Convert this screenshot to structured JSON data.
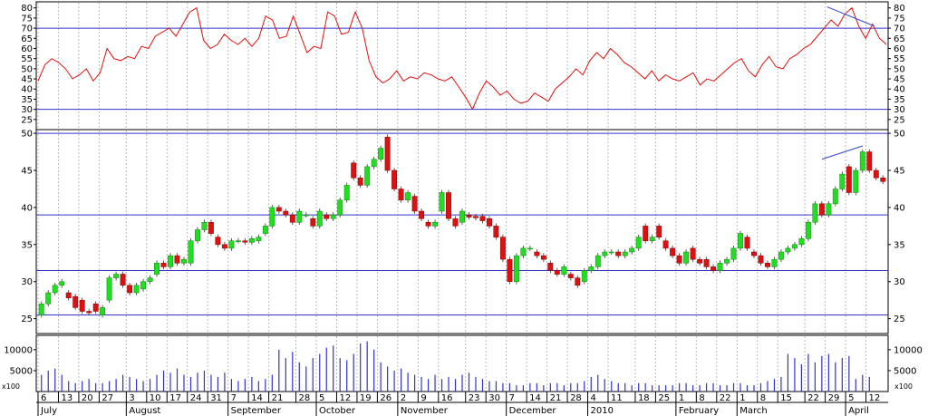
{
  "colors": {
    "rsi_line": "#e01010",
    "up_body": "#22dd22",
    "down_body": "#dd1111",
    "volume_bar": "#3333cc",
    "level_line": "#3333cc",
    "trend_line": "#3344cc",
    "grid": "#bbbbbb",
    "frame": "#000000",
    "background": "#ffffff"
  },
  "chart_data": [
    {
      "type": "line",
      "panel": "rsi",
      "y_ticks": [
        80,
        75,
        70,
        65,
        60,
        55,
        50,
        45,
        40,
        35,
        30,
        25
      ],
      "ylim": [
        20,
        83
      ],
      "grid": true,
      "levels": [
        70,
        30
      ],
      "series": [
        {
          "values": [
            44,
            52,
            55,
            53,
            50,
            45,
            47,
            50,
            44,
            48,
            60,
            55,
            54,
            56,
            55,
            61,
            60,
            66,
            68,
            70,
            66,
            72,
            78,
            80,
            64,
            60,
            62,
            67,
            64,
            62,
            65,
            61,
            65,
            76,
            74,
            65,
            66,
            76,
            67,
            58,
            61,
            60,
            78,
            76,
            67,
            68,
            78,
            70,
            54,
            46,
            43,
            45,
            49,
            44,
            46,
            45,
            48,
            47,
            45,
            44,
            46,
            41,
            36,
            30,
            38,
            44,
            41,
            37,
            39,
            35,
            33,
            34,
            38,
            36,
            34,
            40,
            43,
            46,
            50,
            47,
            54,
            58,
            55,
            60,
            57,
            53,
            51,
            48,
            45,
            49,
            44,
            47,
            45,
            44,
            46,
            48,
            42,
            45,
            44,
            47,
            50,
            53,
            55,
            49,
            46,
            52,
            56,
            51,
            50,
            55,
            57,
            60,
            62,
            66,
            70,
            74,
            71,
            77,
            80,
            71,
            65,
            72,
            65,
            62
          ]
        }
      ],
      "annotations": [
        {
          "type": "trendline",
          "from": [
            20,
            80.5
          ],
          "to": [
            21.2,
            71
          ]
        }
      ]
    },
    {
      "type": "candlestick",
      "panel": "price",
      "y_ticks": [
        50,
        45,
        40,
        35,
        30,
        25
      ],
      "ylim": [
        23,
        50.5
      ],
      "grid": true,
      "levels": [
        50,
        39,
        31.5,
        25.5
      ],
      "x_tick_labels": [
        "6",
        "13",
        "20",
        "27",
        "3",
        "10",
        "17",
        "24",
        "31",
        "7",
        "14",
        "21",
        "28",
        "5",
        "12",
        "19",
        "26",
        "2",
        "9",
        "16",
        "23",
        "30",
        "7",
        "14",
        "21",
        "28",
        "4",
        "11",
        "18",
        "25",
        "1",
        "8",
        "22",
        "1",
        "8",
        "15",
        "22",
        "29",
        "5",
        "12"
      ],
      "month_labels": [
        "July",
        "August",
        "September",
        "October",
        "November",
        "December",
        "2010",
        "February",
        "March",
        "April"
      ],
      "series": [
        {
          "name": "",
          "values": [
            [
              25.5,
              27.0
            ],
            [
              27.0,
              28.5
            ],
            [
              28.5,
              29.5
            ],
            [
              29.5,
              30.0
            ],
            [
              28.5,
              27.8
            ],
            [
              28.0,
              26.5
            ],
            [
              27.5,
              26.0
            ],
            [
              26.0,
              25.8
            ],
            [
              27.0,
              26.0
            ],
            [
              25.5,
              26.5
            ],
            [
              27.5,
              30.5
            ],
            [
              30.5,
              31.0
            ],
            [
              31.0,
              29.5
            ],
            [
              29.5,
              28.5
            ],
            [
              28.5,
              29.5
            ],
            [
              29.0,
              30.0
            ],
            [
              30.0,
              30.5
            ],
            [
              31.0,
              32.5
            ],
            [
              32.5,
              32.0
            ],
            [
              32.0,
              33.5
            ],
            [
              33.5,
              32.5
            ],
            [
              32.5,
              33.0
            ],
            [
              32.5,
              35.5
            ],
            [
              35.5,
              37.0
            ],
            [
              37.0,
              38.0
            ],
            [
              38.0,
              36.5
            ],
            [
              36.0,
              35.0
            ],
            [
              35.0,
              34.5
            ],
            [
              34.5,
              35.5
            ],
            [
              35.5,
              35.5
            ],
            [
              35.5,
              35.3
            ],
            [
              35.3,
              35.8
            ],
            [
              35.5,
              36.0
            ],
            [
              36.5,
              37.5
            ],
            [
              37.5,
              40.0
            ],
            [
              40.0,
              39.5
            ],
            [
              39.5,
              39.0
            ],
            [
              39.0,
              38.0
            ],
            [
              38.0,
              39.5
            ],
            [
              39.0,
              39.0
            ],
            [
              38.5,
              37.5
            ],
            [
              37.5,
              39.5
            ],
            [
              39.0,
              38.5
            ],
            [
              38.5,
              39.0
            ],
            [
              39.0,
              41.0
            ],
            [
              41.0,
              43.0
            ],
            [
              46.0,
              44.0
            ],
            [
              44.0,
              43.0
            ],
            [
              43.0,
              45.5
            ],
            [
              45.5,
              46.5
            ],
            [
              46.5,
              48.0
            ],
            [
              49.5,
              45.0
            ],
            [
              45.0,
              42.5
            ],
            [
              42.5,
              41.0
            ],
            [
              41.0,
              42.0
            ],
            [
              41.5,
              39.5
            ],
            [
              39.5,
              38.5
            ],
            [
              38.0,
              37.5
            ],
            [
              37.5,
              38.0
            ],
            [
              39.5,
              42.0
            ],
            [
              42.0,
              38.5
            ],
            [
              38.5,
              37.5
            ],
            [
              38.0,
              39.5
            ],
            [
              39.0,
              38.7
            ],
            [
              38.8,
              38.6
            ],
            [
              38.8,
              38.2
            ],
            [
              38.5,
              37.5
            ],
            [
              37.5,
              36.0
            ],
            [
              36.0,
              33.0
            ],
            [
              33.0,
              30.0
            ],
            [
              30.0,
              33.5
            ],
            [
              33.5,
              34.5
            ],
            [
              34.5,
              34.5
            ],
            [
              34.0,
              33.5
            ],
            [
              33.5,
              33.0
            ],
            [
              32.5,
              31.5
            ],
            [
              31.5,
              31.0
            ],
            [
              31.0,
              32.0
            ],
            [
              31.0,
              30.5
            ],
            [
              30.5,
              29.5
            ],
            [
              30.0,
              31.5
            ],
            [
              31.5,
              32.0
            ],
            [
              32.0,
              33.5
            ],
            [
              33.5,
              34.0
            ],
            [
              34.0,
              34.0
            ],
            [
              34.0,
              33.5
            ],
            [
              33.5,
              34.0
            ],
            [
              34.0,
              34.5
            ],
            [
              34.5,
              36.0
            ],
            [
              37.5,
              35.5
            ],
            [
              35.5,
              36.0
            ],
            [
              37.5,
              36.0
            ],
            [
              35.5,
              34.5
            ],
            [
              34.5,
              33.5
            ],
            [
              33.5,
              32.5
            ],
            [
              32.5,
              34.0
            ],
            [
              34.5,
              33.0
            ],
            [
              33.0,
              32.5
            ],
            [
              33.0,
              32.0
            ],
            [
              32.0,
              31.5
            ],
            [
              31.5,
              32.5
            ],
            [
              32.5,
              33.0
            ],
            [
              33.0,
              34.5
            ],
            [
              34.5,
              36.5
            ],
            [
              36.0,
              34.5
            ],
            [
              34.0,
              33.5
            ],
            [
              33.5,
              32.5
            ],
            [
              32.5,
              32.0
            ],
            [
              32.0,
              33.0
            ],
            [
              33.0,
              34.0
            ],
            [
              34.0,
              34.5
            ],
            [
              34.5,
              35.0
            ],
            [
              35.0,
              35.8
            ],
            [
              35.8,
              38.0
            ],
            [
              38.0,
              40.5
            ],
            [
              40.5,
              39.0
            ],
            [
              39.0,
              40.5
            ],
            [
              40.5,
              42.5
            ],
            [
              42.5,
              44.5
            ],
            [
              45.5,
              42.0
            ],
            [
              42.0,
              45.0
            ],
            [
              45.0,
              47.5
            ],
            [
              47.5,
              45.0
            ],
            [
              45.0,
              44.0
            ],
            [
              44.0,
              43.5
            ]
          ]
        }
      ],
      "annotations": [
        {
          "type": "trendline",
          "from": [
            115,
            46.5
          ],
          "to": [
            121,
            48.3
          ]
        }
      ]
    },
    {
      "type": "bar",
      "panel": "volume",
      "ylabel": "x100",
      "y_ticks": [
        10000,
        5000
      ],
      "ylim": [
        0,
        13000
      ],
      "values": [
        4000,
        5000,
        5500,
        4000,
        2500,
        2000,
        2500,
        3000,
        2000,
        2000,
        2500,
        3000,
        4000,
        3500,
        3000,
        2500,
        3000,
        4000,
        5000,
        4500,
        5500,
        4000,
        3500,
        4500,
        5000,
        4000,
        3500,
        4500,
        3000,
        2500,
        3000,
        3500,
        2500,
        3000,
        4000,
        10000,
        8000,
        9500,
        7000,
        6000,
        8000,
        9000,
        10500,
        11000,
        8000,
        7500,
        9000,
        11500,
        12000,
        10000,
        7000,
        6000,
        5000,
        5500,
        4500,
        4000,
        3500,
        3000,
        4000,
        3000,
        3500,
        3000,
        4000,
        4500,
        3500,
        3000,
        2500,
        2500,
        2000,
        2000,
        1500,
        1500,
        2000,
        2000,
        1500,
        2000,
        2000,
        1500,
        2000,
        2000,
        2500,
        3500,
        4000,
        3000,
        2500,
        2000,
        2000,
        1500,
        2000,
        2000,
        1500,
        1500,
        1500,
        1500,
        2000,
        2000,
        1500,
        1500,
        2000,
        2000,
        1500,
        1500,
        2000,
        2000,
        1500,
        1500,
        2000,
        2500,
        3000,
        3500,
        9000,
        8000,
        6500,
        9000,
        7000,
        8500,
        9000,
        7000,
        8000,
        8500,
        3000,
        4000,
        3500
      ]
    }
  ]
}
